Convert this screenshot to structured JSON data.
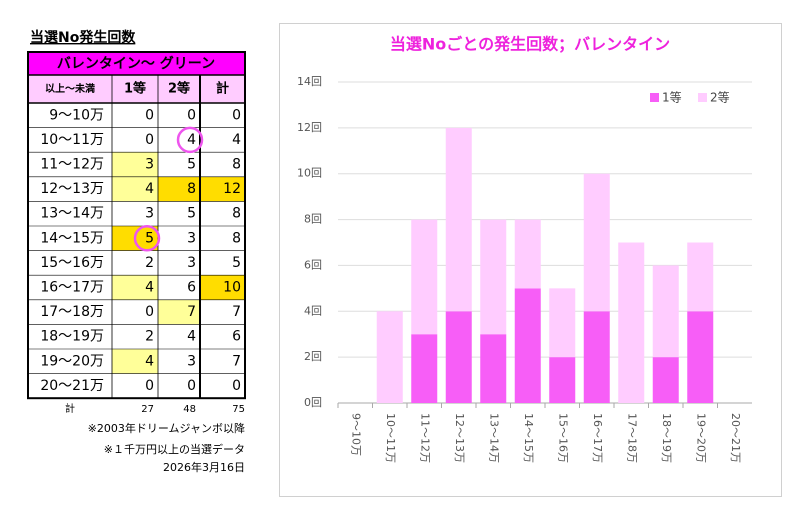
{
  "title": "当選No発生回数",
  "table": {
    "group_header": "バレンタイン～ グリーン",
    "columns": [
      "以上～未満",
      "1等",
      "2等",
      "計"
    ],
    "rows": [
      [
        "9〜10万",
        0,
        0,
        0
      ],
      [
        "10〜11万",
        0,
        4,
        4
      ],
      [
        "11〜12万",
        3,
        5,
        8
      ],
      [
        "12〜13万",
        4,
        8,
        12
      ],
      [
        "13〜14万",
        3,
        5,
        8
      ],
      [
        "14〜15万",
        5,
        3,
        8
      ],
      [
        "15〜16万",
        2,
        3,
        5
      ],
      [
        "16〜17万",
        4,
        6,
        10
      ],
      [
        "17〜18万",
        0,
        7,
        7
      ],
      [
        "18〜19万",
        2,
        4,
        6
      ],
      [
        "19〜20万",
        4,
        3,
        7
      ],
      [
        "20〜21万",
        0,
        0,
        0
      ]
    ],
    "total": [
      "計",
      27,
      48,
      75
    ]
  },
  "notes": [
    "※2003年ドリームジャンボ以降",
    "※１千万円以上の当選データ"
  ],
  "date": "2026年3月16日",
  "chart_data": {
    "type": "bar",
    "stacked": true,
    "title": "当選Noごとの発生回数；バレンタイン",
    "categories": [
      "9～10万",
      "10～11万",
      "11～12万",
      "12～13万",
      "13～14万",
      "14～15万",
      "15～16万",
      "16～17万",
      "17～18万",
      "18～19万",
      "19～20万",
      "20～21万"
    ],
    "series": [
      {
        "name": "1等",
        "color": "#f75ef7",
        "values": [
          0,
          0,
          3,
          4,
          3,
          5,
          2,
          4,
          0,
          2,
          4,
          0
        ]
      },
      {
        "name": "2等",
        "color": "#ffccff",
        "values": [
          0,
          4,
          5,
          8,
          5,
          3,
          3,
          6,
          7,
          4,
          3,
          0
        ]
      }
    ],
    "ylim": [
      0,
      14
    ],
    "yticks": [
      {
        "value": 0,
        "label": "0回"
      },
      {
        "value": 2,
        "label": "2回"
      },
      {
        "value": 4,
        "label": "4回"
      },
      {
        "value": 6,
        "label": "6回"
      },
      {
        "value": 8,
        "label": "8回"
      },
      {
        "value": 10,
        "label": "10回"
      },
      {
        "value": 12,
        "label": "12回"
      },
      {
        "value": 14,
        "label": "14回"
      }
    ],
    "grid": true,
    "legend": "top-right"
  }
}
